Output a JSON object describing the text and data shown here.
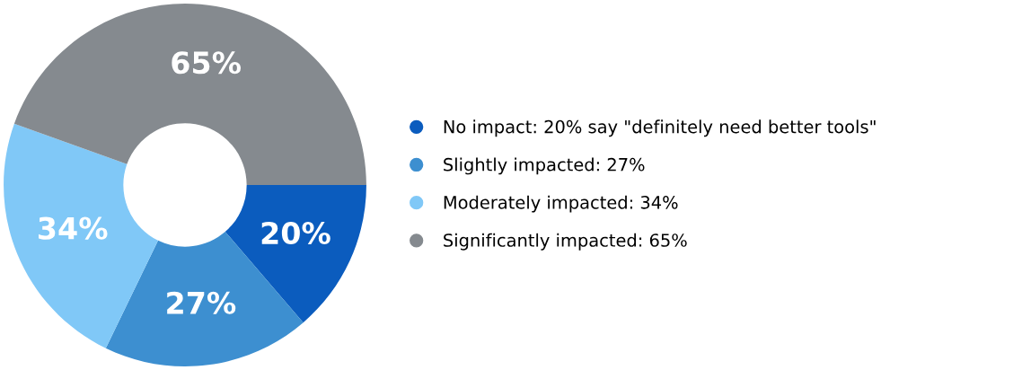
{
  "chart_data": {
    "type": "donut",
    "categories": [
      "No impact: 20% say \"definitely need better tools\"",
      "Slightly impacted: 27%",
      "Moderately impacted: 34%",
      "Significantly impacted: 65%"
    ],
    "values": [
      20,
      27,
      34,
      65
    ],
    "colors": [
      "#0b5cbe",
      "#3d8fd0",
      "#80c8f7",
      "#858a8f"
    ],
    "value_labels": [
      "20%",
      "27%",
      "34%",
      "65%"
    ],
    "legend": "right"
  }
}
